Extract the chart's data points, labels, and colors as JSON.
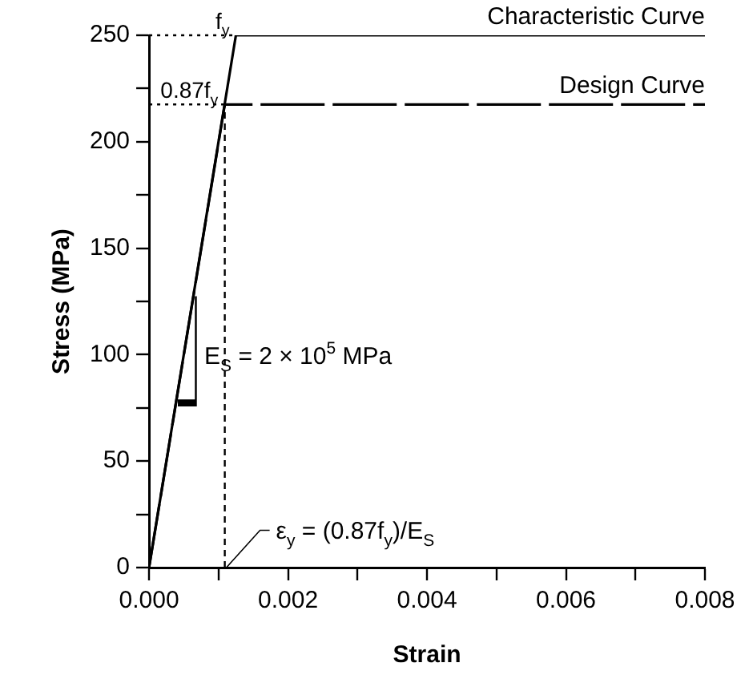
{
  "chart_data": {
    "type": "line",
    "xlabel": "Strain",
    "ylabel": "Stress (MPa)",
    "series": [
      {
        "name": "Characteristic Curve",
        "color": "#000000",
        "x": [
          0,
          0.00125,
          0.008
        ],
        "values": [
          0,
          250,
          250
        ],
        "line_style": "solid"
      },
      {
        "name": "Design Curve",
        "color": "#000000",
        "x": [
          0,
          0.00109,
          0.008
        ],
        "values": [
          0,
          217.5,
          217.5
        ],
        "line_style": "dashed"
      }
    ],
    "xlim": [
      0,
      0.008
    ],
    "xticks": [
      {
        "value": 0,
        "label": "0.000"
      },
      {
        "value": 0.001,
        "label": null
      },
      {
        "value": 0.002,
        "label": "0.002"
      },
      {
        "value": 0.003,
        "label": null
      },
      {
        "value": 0.004,
        "label": "0.004"
      },
      {
        "value": 0.005,
        "label": null
      },
      {
        "value": 0.006,
        "label": "0.006"
      },
      {
        "value": 0.007,
        "label": null
      },
      {
        "value": 0.008,
        "label": "0.008"
      }
    ],
    "ylim": [
      0,
      250
    ],
    "yticks": [
      0,
      {
        "value": 25,
        "label": null
      },
      50,
      {
        "value": 75,
        "label": null
      },
      100,
      {
        "value": 125,
        "label": null
      },
      150,
      {
        "value": 175,
        "label": null
      },
      200,
      {
        "value": 225,
        "label": null
      },
      250
    ],
    "ref_lines": [
      {
        "axis": "y",
        "value": 250,
        "label": "f$_{y}$",
        "line_style": "dotted"
      },
      {
        "axis": "y",
        "value": 217.5,
        "label": "0.87f$_{y}$",
        "line_style": "dotted"
      },
      {
        "axis": "x",
        "value": 0.00109,
        "label": "ε$_{y}$ = (0.87f$_{y}$)/E$_{S}$",
        "line_style": "dashed"
      }
    ],
    "annotations": [
      "E$_{S}$ = 2 × 10$^{5}$ MPa"
    ],
    "grid": false,
    "legend": false,
    "marker": "none"
  }
}
